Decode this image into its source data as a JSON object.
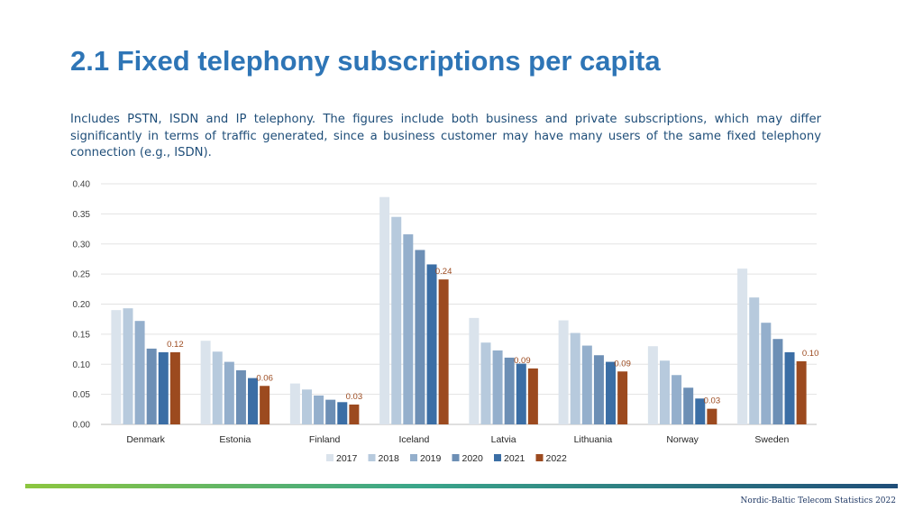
{
  "page": {
    "title": "2.1 Fixed telephony subscriptions per capita",
    "description": "Includes PSTN, ISDN and IP telephony. The figures include both business and private subscriptions, which may differ significantly in terms of traffic generated, since a business customer may have many users of the same fixed telephony connection (e.g., ISDN).",
    "footer": "Nordic-Baltic Telecom Statistics 2022"
  },
  "chart_data": {
    "type": "bar",
    "title": "",
    "xlabel": "",
    "ylabel": "",
    "ylim": [
      0,
      0.4
    ],
    "yticks": [
      "0.00",
      "0.05",
      "0.10",
      "0.15",
      "0.20",
      "0.25",
      "0.30",
      "0.35",
      "0.40"
    ],
    "grid": true,
    "legend_position": "bottom",
    "categories": [
      "Denmark",
      "Estonia",
      "Finland",
      "Iceland",
      "Latvia",
      "Lithuania",
      "Norway",
      "Sweden"
    ],
    "series": [
      {
        "name": "2017",
        "color": "#dae3ec",
        "values": [
          0.19,
          0.139,
          0.068,
          0.378,
          0.177,
          0.173,
          0.13,
          0.259
        ]
      },
      {
        "name": "2018",
        "color": "#b7cadd",
        "values": [
          0.193,
          0.121,
          0.058,
          0.345,
          0.136,
          0.152,
          0.106,
          0.211
        ]
      },
      {
        "name": "2019",
        "color": "#94afcc",
        "values": [
          0.172,
          0.104,
          0.048,
          0.316,
          0.123,
          0.131,
          0.082,
          0.169
        ]
      },
      {
        "name": "2020",
        "color": "#6d8fb5",
        "values": [
          0.126,
          0.09,
          0.041,
          0.29,
          0.111,
          0.115,
          0.061,
          0.142
        ]
      },
      {
        "name": "2021",
        "color": "#3b6ea5",
        "values": [
          0.12,
          0.077,
          0.037,
          0.266,
          0.101,
          0.104,
          0.043,
          0.12
        ]
      },
      {
        "name": "2022",
        "color": "#9c4a1f",
        "values": [
          0.12,
          0.064,
          0.033,
          0.241,
          0.093,
          0.088,
          0.026,
          0.105
        ]
      }
    ],
    "data_labels": {
      "series": "2022",
      "color": "#9c4a1f",
      "labels": [
        "0.12",
        "0.06",
        "0.03",
        "0.24",
        "0.09",
        "0.09",
        "0.03",
        "0.10"
      ]
    }
  }
}
